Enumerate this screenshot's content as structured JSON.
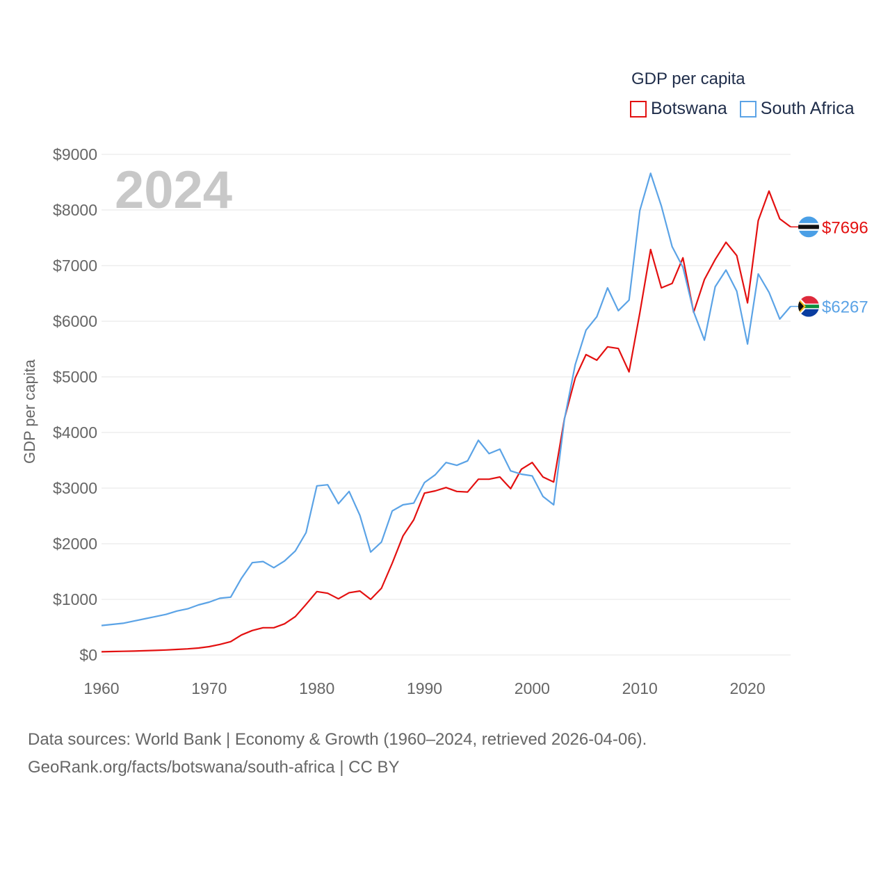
{
  "legend": {
    "title": "GDP per capita",
    "items": [
      {
        "name": "Botswana",
        "color": "#e31010"
      },
      {
        "name": "South Africa",
        "color": "#5ba3e6"
      }
    ]
  },
  "footer": {
    "line1": "Data sources: World Bank | Economy & Growth (1960–2024, retrieved 2026-04-06).",
    "line2": "GeoRank.org/facts/botswana/south-africa | CC BY"
  },
  "chart_data": {
    "type": "line",
    "title": "GDP per capita",
    "year_label": "2024",
    "xlabel": "",
    "ylabel": "GDP per capita",
    "xlim": [
      1960,
      2024
    ],
    "ylim": [
      0,
      9000
    ],
    "x_ticks": [
      1960,
      1970,
      1980,
      1990,
      2000,
      2010,
      2020
    ],
    "y_ticks": [
      0,
      1000,
      2000,
      3000,
      4000,
      5000,
      6000,
      7000,
      8000,
      9000
    ],
    "y_tick_labels": [
      "$0",
      "$1000",
      "$2000",
      "$3000",
      "$4000",
      "$5000",
      "$6000",
      "$7000",
      "$8000",
      "$9000"
    ],
    "grid": true,
    "x": [
      1960,
      1961,
      1962,
      1963,
      1964,
      1965,
      1966,
      1967,
      1968,
      1969,
      1970,
      1971,
      1972,
      1973,
      1974,
      1975,
      1976,
      1977,
      1978,
      1979,
      1980,
      1981,
      1982,
      1983,
      1984,
      1985,
      1986,
      1987,
      1988,
      1989,
      1990,
      1991,
      1992,
      1993,
      1994,
      1995,
      1996,
      1997,
      1998,
      1999,
      2000,
      2001,
      2002,
      2003,
      2004,
      2005,
      2006,
      2007,
      2008,
      2009,
      2010,
      2011,
      2012,
      2013,
      2014,
      2015,
      2016,
      2017,
      2018,
      2019,
      2020,
      2021,
      2022,
      2023,
      2024
    ],
    "series": [
      {
        "name": "Botswana",
        "color": "#e31010",
        "end_label": "$7696",
        "values": [
          58,
          62,
          66,
          70,
          76,
          82,
          90,
          100,
          110,
          125,
          150,
          190,
          240,
          360,
          440,
          490,
          490,
          560,
          690,
          910,
          1140,
          1110,
          1010,
          1120,
          1150,
          1000,
          1200,
          1650,
          2140,
          2430,
          2910,
          2950,
          3010,
          2940,
          2930,
          3160,
          3160,
          3200,
          2990,
          3340,
          3460,
          3200,
          3110,
          4250,
          4980,
          5400,
          5300,
          5540,
          5510,
          5090,
          6150,
          7290,
          6600,
          6680,
          7140,
          6160,
          6750,
          7110,
          7420,
          7180,
          6330,
          7810,
          8340,
          7840,
          7696
        ]
      },
      {
        "name": "South Africa",
        "color": "#5ba3e6",
        "end_label": "$6267",
        "values": [
          530,
          550,
          570,
          610,
          650,
          690,
          730,
          790,
          830,
          900,
          950,
          1020,
          1040,
          1380,
          1660,
          1680,
          1570,
          1690,
          1870,
          2200,
          3040,
          3060,
          2720,
          2940,
          2510,
          1850,
          2030,
          2590,
          2700,
          2730,
          3100,
          3240,
          3460,
          3410,
          3490,
          3860,
          3620,
          3700,
          3310,
          3250,
          3220,
          2850,
          2700,
          4240,
          5220,
          5840,
          6080,
          6600,
          6190,
          6380,
          7990,
          8660,
          8070,
          7340,
          6970,
          6170,
          5660,
          6620,
          6920,
          6540,
          5590,
          6850,
          6520,
          6040,
          6267
        ]
      }
    ]
  }
}
